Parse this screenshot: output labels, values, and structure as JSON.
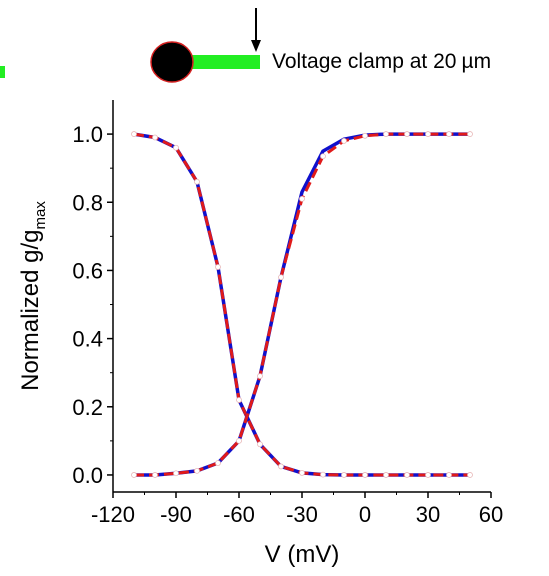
{
  "header": {
    "caption_text": "Voltage clamp at  20",
    "caption_unit": "µm",
    "soma_color": "#000000",
    "soma_outline": "#d42020",
    "dendrite_color": "#22ee22",
    "arrow_color": "#000000"
  },
  "chart_data": {
    "type": "line",
    "xlabel": "V (mV)",
    "ylabel_main": "Normalized g/g",
    "ylabel_sub": "max",
    "xlim": [
      -120,
      60
    ],
    "ylim": [
      -0.05,
      1.1
    ],
    "xticks": [
      -120,
      -90,
      -60,
      -30,
      0,
      30,
      60
    ],
    "yticks": [
      0.0,
      0.2,
      0.4,
      0.6,
      0.8,
      1.0
    ],
    "xtick_labels": [
      "-120",
      "-90",
      "-60",
      "-30",
      "0",
      "30",
      "60"
    ],
    "ytick_labels": [
      "0.0",
      "0.2",
      "0.4",
      "0.6",
      "0.8",
      "1.0"
    ],
    "grid": false,
    "legend": "none",
    "x": [
      -110,
      -100,
      -90,
      -80,
      -70,
      -60,
      -50,
      -40,
      -30,
      -20,
      -10,
      0,
      10,
      20,
      30,
      40,
      50
    ],
    "series": [
      {
        "color": "#1010cc",
        "style": "solid",
        "values": [
          1.0,
          0.99,
          0.96,
          0.86,
          0.61,
          0.22,
          0.09,
          0.025,
          0.006,
          0.001,
          0.0,
          0.0,
          0.0,
          0.0,
          0.0,
          0.0,
          0.0
        ]
      },
      {
        "color": "#e01a1a",
        "style": "dashed",
        "markers": "open-circle",
        "values": [
          1.0,
          0.99,
          0.96,
          0.86,
          0.61,
          0.22,
          0.09,
          0.025,
          0.006,
          0.001,
          0.0,
          0.0,
          0.0,
          0.0,
          0.0,
          0.0,
          0.0
        ]
      },
      {
        "color": "#1010cc",
        "style": "solid",
        "values": [
          0.0,
          0.0,
          0.005,
          0.012,
          0.035,
          0.1,
          0.29,
          0.58,
          0.83,
          0.95,
          0.985,
          0.997,
          1.0,
          1.0,
          1.0,
          1.0,
          1.0
        ]
      },
      {
        "color": "#e01a1a",
        "style": "dashed",
        "markers": "open-circle",
        "values": [
          0.0,
          0.0,
          0.005,
          0.012,
          0.035,
          0.1,
          0.29,
          0.58,
          0.81,
          0.935,
          0.98,
          0.995,
          1.0,
          1.0,
          1.0,
          1.0,
          1.0
        ]
      }
    ]
  }
}
